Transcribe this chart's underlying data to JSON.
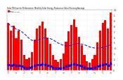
{
  "title": "Solar PV/Inverter Performance  Monthly Solar Energy Production Value Running Average",
  "bar_values": [
    0.85,
    0.72,
    0.8,
    0.58,
    0.72,
    0.55,
    0.28,
    0.2,
    0.22,
    0.32,
    0.55,
    0.75,
    0.8,
    0.88,
    0.75,
    0.58,
    0.48,
    0.28,
    0.18,
    0.15,
    0.2,
    0.3,
    0.52,
    0.7,
    0.82,
    0.92,
    0.78,
    0.6,
    0.45,
    0.28,
    0.16,
    0.14,
    0.2,
    0.28,
    0.5,
    0.72,
    0.85,
    0.9,
    0.76,
    1.05
  ],
  "running_avg": [
    0.85,
    0.79,
    0.79,
    0.74,
    0.73,
    0.7,
    0.66,
    0.62,
    0.57,
    0.54,
    0.53,
    0.53,
    0.56,
    0.58,
    0.59,
    0.58,
    0.57,
    0.55,
    0.52,
    0.49,
    0.47,
    0.45,
    0.44,
    0.44,
    0.45,
    0.47,
    0.48,
    0.48,
    0.47,
    0.46,
    0.44,
    0.42,
    0.41,
    0.4,
    0.4,
    0.4,
    0.41,
    0.43,
    0.44,
    0.46
  ],
  "dot_values": [
    0.1,
    0.09,
    0.1,
    0.08,
    0.09,
    0.07,
    0.05,
    0.04,
    0.05,
    0.06,
    0.08,
    0.1,
    0.1,
    0.11,
    0.1,
    0.08,
    0.07,
    0.05,
    0.04,
    0.03,
    0.04,
    0.05,
    0.07,
    0.09,
    0.1,
    0.11,
    0.1,
    0.08,
    0.07,
    0.05,
    0.03,
    0.03,
    0.04,
    0.05,
    0.07,
    0.09,
    0.1,
    0.11,
    0.09,
    0.12
  ],
  "bar_color": "#FF0000",
  "avg_color": "#0000DD",
  "dot_color": "#0000FF",
  "ylim": [
    0.0,
    1.1
  ],
  "ytick_vals": [
    0.0,
    0.1,
    0.2,
    0.3,
    0.4,
    0.5,
    0.6,
    0.7,
    0.8,
    0.9,
    1.0,
    1.1
  ],
  "ytick_labels": [
    "0",
    ".1",
    ".2",
    ".3",
    ".4",
    ".5",
    ".6",
    ".7",
    ".8",
    ".9",
    "1.",
    "1.1"
  ],
  "background_color": "#ffffff",
  "grid_color": "#cccccc",
  "xtick_labels": [
    "Jan\n'09",
    "",
    "",
    "Feb\n'09",
    "",
    "",
    "Mar\n'09",
    "",
    "",
    "Apr\n'09",
    "",
    "",
    "May\n'09",
    "",
    "",
    "Jun\n'09",
    "",
    "",
    "Jul\n'09",
    "",
    "",
    "Aug\n'09",
    "",
    "",
    "Sep\n'09",
    "",
    "",
    "Oct\n'09",
    "",
    "",
    "Nov\n'09",
    "",
    "",
    "Dec\n'09",
    "",
    "",
    "Jan\n'10",
    "",
    "",
    "Feb\n'10"
  ]
}
